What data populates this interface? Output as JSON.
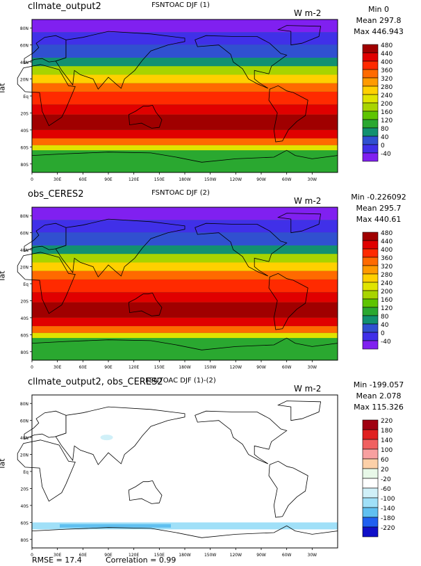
{
  "panels": [
    {
      "case_name": "cllmate_output2",
      "field_title": "FSNTOAC DJF (1)",
      "units": "W m-2",
      "stats": [
        "Min 0",
        "Mean 297.8",
        "Max 446.943"
      ],
      "ylabel": "lat",
      "colorbar_levels": [
        "480",
        "440",
        "400",
        "360",
        "320",
        "280",
        "240",
        "200",
        "160",
        "120",
        "80",
        "40",
        "0",
        "-40"
      ],
      "colors": [
        "#a00000",
        "#e00000",
        "#ff2a00",
        "#ff6a00",
        "#ff9a00",
        "#ffd000",
        "#e0e400",
        "#a8d400",
        "#5ec400",
        "#2aa830",
        "#129070",
        "#3050d0",
        "#4030e8",
        "#8020f0"
      ]
    },
    {
      "case_name": "obs_CERES2",
      "field_title": "FSNTOAC DJF (2)",
      "units": "W m-2",
      "stats": [
        "Min -0.226092",
        "Mean 295.7",
        "Max 440.61"
      ],
      "ylabel": "lat",
      "colorbar_levels": [
        "480",
        "440",
        "400",
        "360",
        "320",
        "280",
        "240",
        "200",
        "160",
        "120",
        "80",
        "40",
        "0",
        "-40"
      ],
      "colors": [
        "#a00000",
        "#e00000",
        "#ff2a00",
        "#ff6a00",
        "#ff9a00",
        "#ffd000",
        "#e0e400",
        "#a8d400",
        "#5ec400",
        "#2aa830",
        "#129070",
        "#3050d0",
        "#4030e8",
        "#8020f0"
      ]
    },
    {
      "case_name": "cllmate_output2, obs_CERES2",
      "field_title": "FSNTOAC DJF (1)-(2)",
      "units": "W m-2",
      "stats": [
        "Min -199.057",
        "Mean 2.078",
        "Max 115.326"
      ],
      "ylabel": "lat",
      "colorbar_levels": [
        "220",
        "180",
        "140",
        "100",
        "60",
        "20",
        "-20",
        "-60",
        "-100",
        "-140",
        "-180",
        "-220"
      ],
      "colors": [
        "#a00010",
        "#e02020",
        "#f06060",
        "#f8a0a0",
        "#fcd0a8",
        "#e8f8e8",
        "#ffffff",
        "#d0f0f8",
        "#a0e0f8",
        "#60c0f0",
        "#2060f0",
        "#1010c8"
      ]
    }
  ],
  "lat_ticks": [
    "80N",
    "60N",
    "40N",
    "20N",
    "Eq",
    "20S",
    "40S",
    "60S",
    "80S"
  ],
  "lon_ticks": [
    "0",
    "30E",
    "60E",
    "90E",
    "120E",
    "150E",
    "180W",
    "150W",
    "120W",
    "90W",
    "60W",
    "30W"
  ],
  "footer": {
    "rmse": "RMSE = 17.4",
    "correlation": "Correlation = 0.99"
  }
}
